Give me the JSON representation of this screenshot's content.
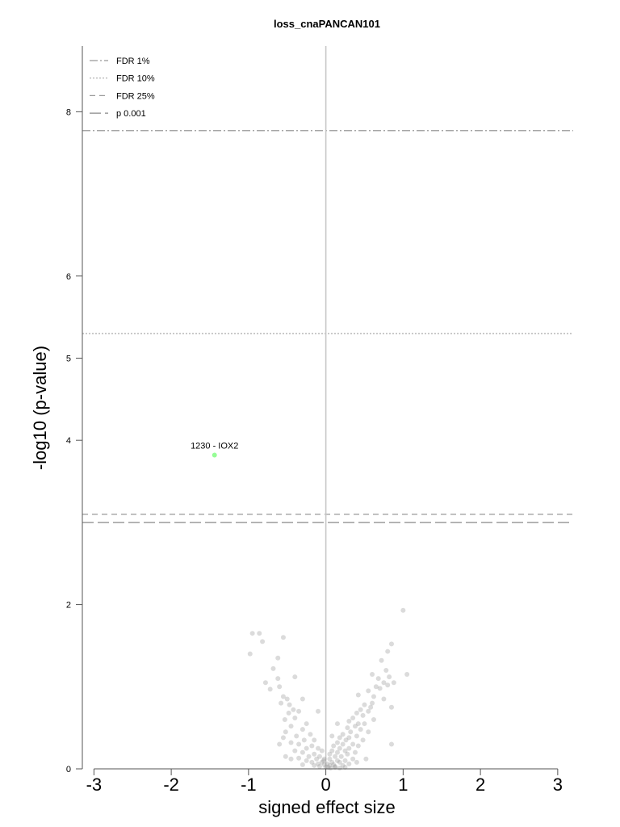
{
  "chart_data": {
    "type": "scatter",
    "title": "loss_cnaPANCAN101",
    "xlabel": "signed effect size",
    "ylabel": "-log10 (p-value)",
    "xlim": [
      -3.15,
      3.2
    ],
    "ylim": [
      0,
      8.8
    ],
    "xticks": [
      -3,
      -2,
      -1,
      0,
      1,
      2,
      3
    ],
    "yticks": [
      0,
      2,
      4,
      5,
      6,
      8
    ],
    "grid": false,
    "legend_position": "top-left",
    "thresholds": [
      {
        "name": "FDR 1%",
        "y": 7.77,
        "style": "dashdot",
        "color": "#999999"
      },
      {
        "name": "FDR 10%",
        "y": 5.3,
        "style": "dotted",
        "color": "#aaaaaa"
      },
      {
        "name": "FDR 25%",
        "y": 3.1,
        "style": "dashed",
        "color": "#999999"
      },
      {
        "name": "p 0.001",
        "y": 3.0,
        "style": "longdash",
        "color": "#888888"
      }
    ],
    "highlight": {
      "label": "1230 - IOX2",
      "x": -1.44,
      "y": 3.82,
      "color": "#7CFC7C"
    },
    "points_color": "#999999",
    "points": [
      [
        -0.95,
        1.65
      ],
      [
        -0.86,
        1.65
      ],
      [
        -0.55,
        1.6
      ],
      [
        -0.82,
        1.55
      ],
      [
        -0.98,
        1.4
      ],
      [
        -0.62,
        1.35
      ],
      [
        -0.68,
        1.22
      ],
      [
        -0.4,
        1.12
      ],
      [
        -0.62,
        1.1
      ],
      [
        -0.78,
        1.05
      ],
      [
        -0.6,
        1.0
      ],
      [
        -0.72,
        0.97
      ],
      [
        -0.55,
        0.88
      ],
      [
        -0.5,
        0.85
      ],
      [
        -0.58,
        0.8
      ],
      [
        -0.47,
        0.78
      ],
      [
        -0.3,
        0.85
      ],
      [
        -0.42,
        0.72
      ],
      [
        -0.35,
        0.7
      ],
      [
        -0.48,
        0.68
      ],
      [
        -0.53,
        0.6
      ],
      [
        -0.4,
        0.62
      ],
      [
        -0.1,
        0.7
      ],
      [
        -0.25,
        0.55
      ],
      [
        -0.45,
        0.52
      ],
      [
        -0.52,
        0.45
      ],
      [
        -0.3,
        0.48
      ],
      [
        -0.2,
        0.42
      ],
      [
        -0.38,
        0.4
      ],
      [
        -0.55,
        0.38
      ],
      [
        -0.15,
        0.35
      ],
      [
        -0.28,
        0.35
      ],
      [
        -0.45,
        0.32
      ],
      [
        -0.6,
        0.3
      ],
      [
        -0.35,
        0.3
      ],
      [
        -0.18,
        0.28
      ],
      [
        -0.25,
        0.25
      ],
      [
        -0.1,
        0.25
      ],
      [
        -0.4,
        0.22
      ],
      [
        -0.05,
        0.22
      ],
      [
        -0.3,
        0.2
      ],
      [
        -0.15,
        0.18
      ],
      [
        -0.22,
        0.15
      ],
      [
        -0.08,
        0.15
      ],
      [
        -0.35,
        0.13
      ],
      [
        -0.12,
        0.12
      ],
      [
        -0.02,
        0.12
      ],
      [
        -0.45,
        0.12
      ],
      [
        -0.25,
        0.1
      ],
      [
        -0.18,
        0.08
      ],
      [
        -0.05,
        0.08
      ],
      [
        -0.1,
        0.06
      ],
      [
        -0.3,
        0.05
      ],
      [
        -0.02,
        0.05
      ],
      [
        -0.15,
        0.04
      ],
      [
        -0.08,
        0.03
      ],
      [
        -0.52,
        0.15
      ],
      [
        0.0,
        0.02
      ],
      [
        -0.03,
        0.1
      ],
      [
        0.02,
        0.06
      ],
      [
        1.0,
        1.93
      ],
      [
        0.85,
        1.52
      ],
      [
        0.8,
        1.43
      ],
      [
        0.72,
        1.32
      ],
      [
        1.05,
        1.15
      ],
      [
        0.6,
        1.15
      ],
      [
        0.78,
        1.2
      ],
      [
        0.68,
        1.1
      ],
      [
        0.82,
        1.12
      ],
      [
        0.75,
        1.05
      ],
      [
        0.8,
        1.02
      ],
      [
        0.65,
        1.0
      ],
      [
        0.88,
        1.05
      ],
      [
        0.7,
        0.98
      ],
      [
        0.55,
        0.95
      ],
      [
        0.42,
        0.9
      ],
      [
        0.62,
        0.88
      ],
      [
        0.75,
        0.85
      ],
      [
        0.6,
        0.8
      ],
      [
        0.5,
        0.78
      ],
      [
        0.58,
        0.75
      ],
      [
        0.85,
        0.75
      ],
      [
        0.45,
        0.72
      ],
      [
        0.55,
        0.7
      ],
      [
        0.4,
        0.68
      ],
      [
        0.48,
        0.65
      ],
      [
        0.35,
        0.62
      ],
      [
        0.62,
        0.6
      ],
      [
        0.3,
        0.58
      ],
      [
        0.42,
        0.55
      ],
      [
        0.5,
        0.55
      ],
      [
        0.38,
        0.52
      ],
      [
        0.28,
        0.5
      ],
      [
        0.45,
        0.48
      ],
      [
        0.55,
        0.45
      ],
      [
        0.32,
        0.45
      ],
      [
        0.22,
        0.42
      ],
      [
        0.4,
        0.4
      ],
      [
        0.18,
        0.38
      ],
      [
        0.3,
        0.38
      ],
      [
        0.48,
        0.35
      ],
      [
        0.26,
        0.35
      ],
      [
        0.15,
        0.32
      ],
      [
        0.35,
        0.3
      ],
      [
        0.22,
        0.3
      ],
      [
        0.1,
        0.28
      ],
      [
        0.42,
        0.28
      ],
      [
        0.85,
        0.3
      ],
      [
        0.3,
        0.25
      ],
      [
        0.18,
        0.25
      ],
      [
        0.08,
        0.22
      ],
      [
        0.25,
        0.22
      ],
      [
        0.38,
        0.2
      ],
      [
        0.15,
        0.2
      ],
      [
        0.05,
        0.18
      ],
      [
        0.28,
        0.18
      ],
      [
        0.2,
        0.15
      ],
      [
        0.12,
        0.15
      ],
      [
        0.05,
        0.12
      ],
      [
        0.35,
        0.12
      ],
      [
        0.25,
        0.1
      ],
      [
        0.15,
        0.1
      ],
      [
        0.08,
        0.08
      ],
      [
        0.18,
        0.08
      ],
      [
        0.3,
        0.06
      ],
      [
        0.1,
        0.05
      ],
      [
        0.05,
        0.04
      ],
      [
        0.22,
        0.04
      ],
      [
        0.12,
        0.03
      ],
      [
        0.03,
        0.02
      ],
      [
        0.52,
        0.12
      ],
      [
        0.4,
        0.08
      ],
      [
        0.08,
        0.4
      ],
      [
        0.15,
        0.55
      ],
      [
        0.12,
        0.02
      ],
      [
        0.18,
        0.01
      ],
      [
        0.06,
        0.01
      ],
      [
        0.25,
        0.02
      ]
    ]
  }
}
